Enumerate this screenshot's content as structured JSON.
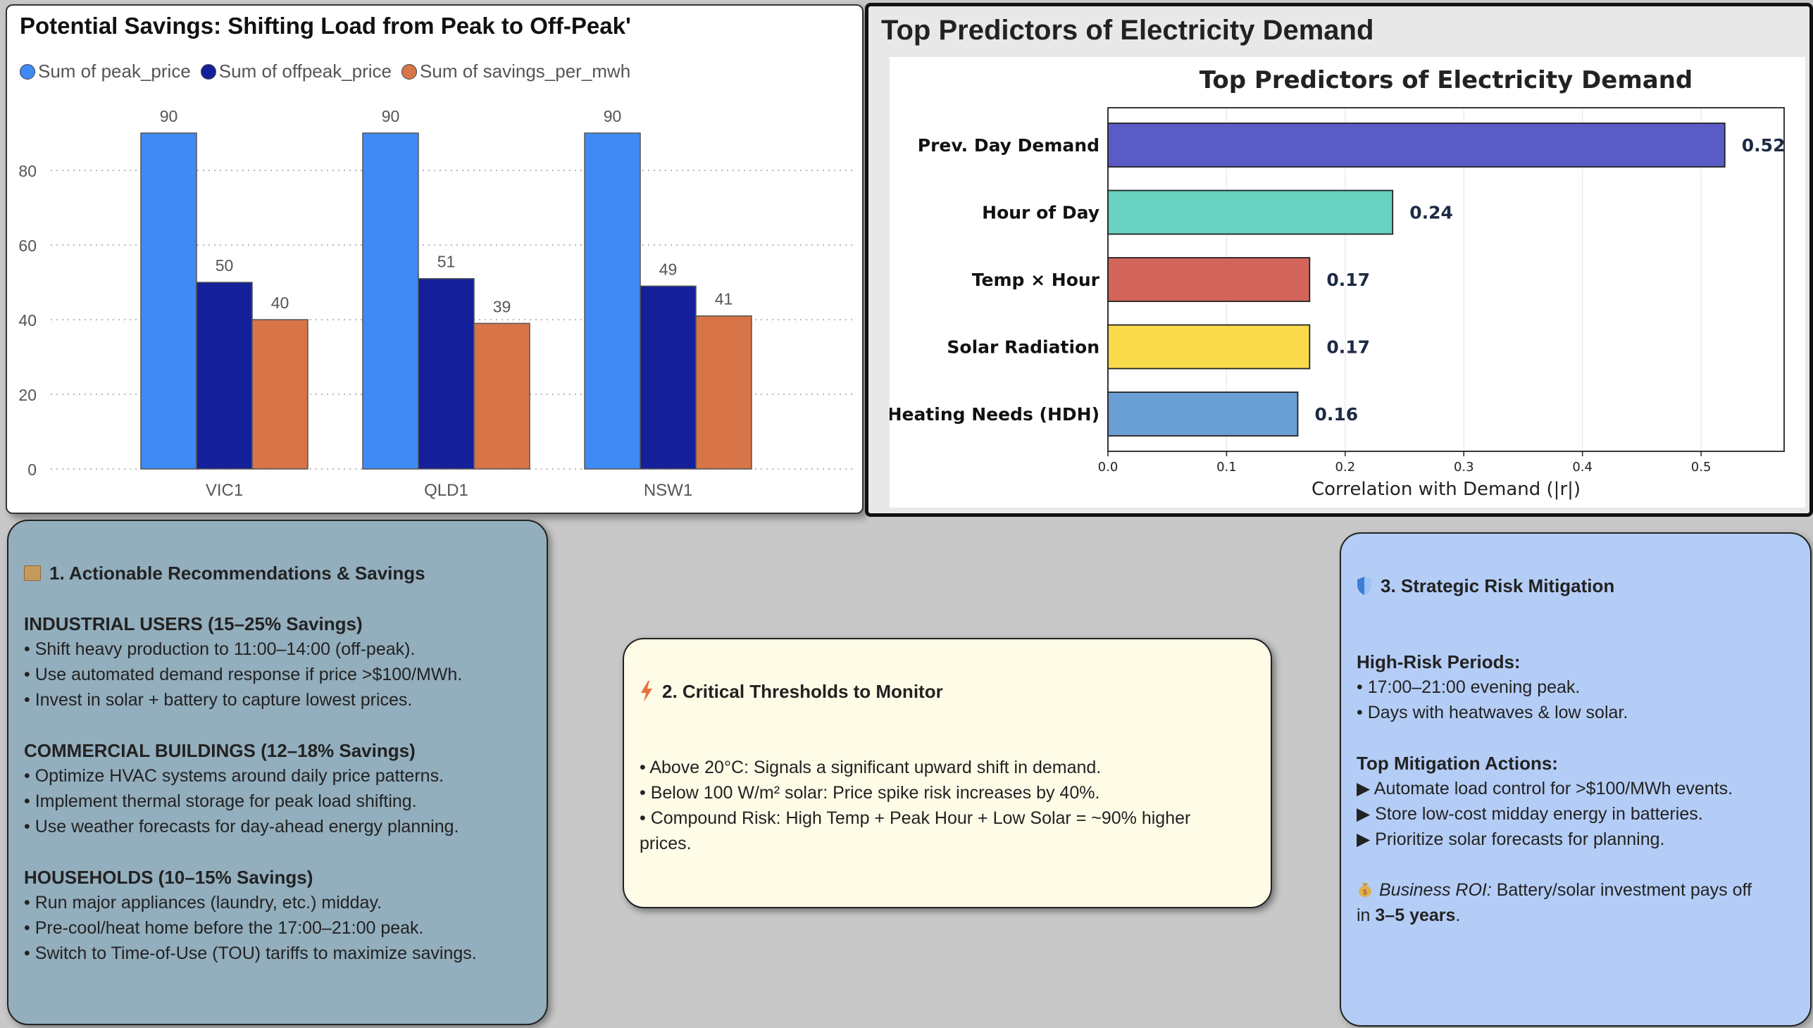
{
  "chart_data": [
    {
      "type": "bar",
      "title": "Potential Savings: Shifting Load from Peak to Off-Peak'",
      "categories": [
        "VIC1",
        "QLD1",
        "NSW1"
      ],
      "series": [
        {
          "name": "Sum of peak_price",
          "values": [
            90,
            90,
            90
          ],
          "color": "#3f8af5"
        },
        {
          "name": "Sum of offpeak_price",
          "values": [
            50,
            51,
            49
          ],
          "color": "#13209a"
        },
        {
          "name": "Sum of savings_per_mwh",
          "values": [
            40,
            39,
            41
          ],
          "color": "#d77448"
        }
      ],
      "yticks": [
        0,
        20,
        40,
        60,
        80
      ],
      "ylim": [
        0,
        100
      ],
      "legend": "top-left",
      "grid": "horizontal-dotted"
    },
    {
      "type": "bar",
      "orientation": "horizontal",
      "panel_title": "Top Predictors of Electricity Demand",
      "title": "Top Predictors of Electricity Demand",
      "xlabel": "Correlation with Demand (|r|)",
      "categories": [
        "Prev. Day Demand",
        "Hour of Day",
        "Temp × Hour",
        "Solar Radiation",
        "Heating Needs (HDH)"
      ],
      "values": [
        0.52,
        0.24,
        0.17,
        0.17,
        0.16
      ],
      "value_labels": [
        "0.52",
        "0.24",
        "0.17",
        "0.17",
        "0.16"
      ],
      "colors": [
        "#5b5bc8",
        "#69d1bf",
        "#d3645a",
        "#f9da4b",
        "#6a9fd4"
      ],
      "xticks": [
        "0.0",
        "0.1",
        "0.2",
        "0.3",
        "0.4",
        "0.5"
      ],
      "xlim": [
        0,
        0.57
      ],
      "grid": "vertical"
    }
  ],
  "cards": {
    "recommendations": {
      "icon": "package-icon",
      "title": "1. Actionable Recommendations & Savings",
      "sections": [
        {
          "head": "INDUSTRIAL USERS (15–25% Savings)",
          "lines": [
            "• Shift heavy production to 11:00–14:00 (off-peak).",
            "• Use automated demand response if price >$100/MWh.",
            "• Invest in solar + battery to capture lowest prices."
          ]
        },
        {
          "head": "COMMERCIAL BUILDINGS (12–18% Savings)",
          "lines": [
            "• Optimize HVAC systems around daily price patterns.",
            "• Implement thermal storage for peak load shifting.",
            "• Use weather forecasts for day-ahead energy planning."
          ]
        },
        {
          "head": "HOUSEHOLDS (10–15% Savings)",
          "lines": [
            "• Run major appliances (laundry, etc.) midday.",
            "• Pre-cool/heat home before the 17:00–21:00 peak.",
            "• Switch to Time-of-Use (TOU) tariffs to maximize savings."
          ]
        }
      ]
    },
    "thresholds": {
      "icon": "lightning-icon",
      "title": "2. Critical Thresholds to Monitor",
      "lines": [
        "• Above 20°C: Signals a significant upward shift in demand.",
        "• Below 100 W/m² solar: Price spike risk increases by 40%.",
        "• Compound Risk: High Temp + Peak Hour + Low Solar = ~90% higher",
        "prices."
      ]
    },
    "risk": {
      "icon": "shield-icon",
      "title": "3. Strategic Risk Mitigation",
      "high_risk_head": "High-Risk Periods:",
      "high_risk_lines": [
        "• 17:00–21:00 evening peak.",
        "• Days with heatwaves & low solar."
      ],
      "actions_head": "Top Mitigation Actions:",
      "actions_lines": [
        "▶ Automate load control for >$100/MWh events.",
        "▶ Store low-cost midday energy in batteries.",
        "▶ Prioritize solar forecasts for planning."
      ],
      "roi_icon": "money-bag-icon",
      "roi_label": "Business ROI:",
      "roi_text": " Battery/solar investment pays off",
      "roi_line2_prefix": "in ",
      "roi_years": "3–5 years",
      "roi_suffix": "."
    }
  }
}
